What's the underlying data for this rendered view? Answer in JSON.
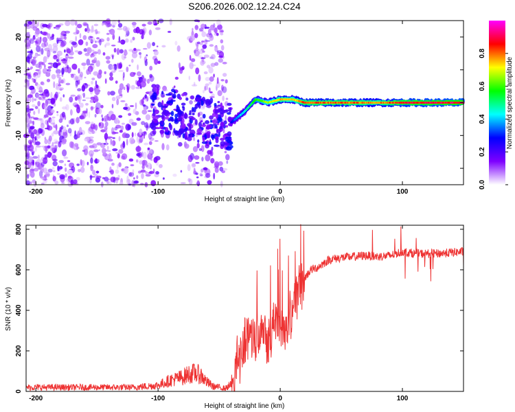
{
  "title": "S206.2026.002.12.24.C24",
  "chart_data": [
    {
      "type": "heatmap",
      "xlabel": "Height of straight line (km)",
      "ylabel": "Frequency (Hz)",
      "xlim": [
        -208,
        150
      ],
      "ylim": [
        -25,
        25
      ],
      "x_ticks": [
        "-200",
        "-100",
        "0",
        "100"
      ],
      "x_tick_values": [
        -200,
        -100,
        0,
        100
      ],
      "y_ticks": [
        "-20",
        "-10",
        "0",
        "10",
        "20"
      ],
      "y_tick_values": [
        -20,
        -10,
        0,
        10,
        20
      ],
      "colorbar": {
        "label": "Normalized spectral amplitude",
        "range": [
          0,
          1
        ],
        "ticks": [
          "0.0",
          "0.2",
          "0.4",
          "0.6",
          "0.8"
        ],
        "tick_values": [
          0,
          0.2,
          0.4,
          0.6,
          0.8
        ],
        "colors": [
          "#ffffff",
          "#7e00ff",
          "#0000ff",
          "#00ffff",
          "#00ff00",
          "#ffff00",
          "#ff0000",
          "#ff00ff"
        ]
      },
      "ridge": {
        "description": "Strong spectral ridge near 0 Hz for heights above about -40 km",
        "x": [
          -40,
          -30,
          -20,
          -10,
          0,
          10,
          20,
          40,
          60,
          80,
          100,
          150
        ],
        "y": [
          -6,
          -3,
          1,
          0,
          1,
          1,
          0,
          0,
          0,
          0,
          0,
          0
        ],
        "amplitude": [
          0.3,
          0.45,
          0.6,
          0.7,
          0.8,
          0.75,
          0.85,
          0.85,
          0.85,
          0.8,
          0.9,
          0.95
        ]
      }
    },
    {
      "type": "line",
      "xlabel": "Height of straight line (km)",
      "ylabel": "SNR (10 * v/v)",
      "xlim": [
        -208,
        150
      ],
      "ylim": [
        0,
        820
      ],
      "x_ticks": [
        "-200",
        "-100",
        "0",
        "100"
      ],
      "x_tick_values": [
        -200,
        -100,
        0,
        100
      ],
      "y_ticks": [
        "0",
        "200",
        "400",
        "600",
        "800"
      ],
      "y_tick_values": [
        0,
        200,
        400,
        600,
        800
      ],
      "line_color": "#ee3333",
      "series": [
        {
          "name": "SNR",
          "x": [
            -208,
            -180,
            -150,
            -120,
            -100,
            -90,
            -80,
            -75,
            -70,
            -65,
            -60,
            -55,
            -45,
            -38,
            -35,
            -30,
            -25,
            -20,
            -15,
            -10,
            -5,
            0,
            5,
            10,
            15,
            20,
            25,
            30,
            40,
            50,
            60,
            70,
            80,
            90,
            100,
            110,
            120,
            130,
            140,
            150
          ],
          "values": [
            20,
            20,
            20,
            20,
            30,
            55,
            70,
            85,
            90,
            80,
            45,
            25,
            15,
            40,
            150,
            220,
            300,
            260,
            350,
            260,
            330,
            350,
            300,
            420,
            500,
            560,
            600,
            610,
            650,
            660,
            665,
            670,
            665,
            670,
            690,
            680,
            680,
            680,
            685,
            690
          ]
        }
      ]
    }
  ]
}
